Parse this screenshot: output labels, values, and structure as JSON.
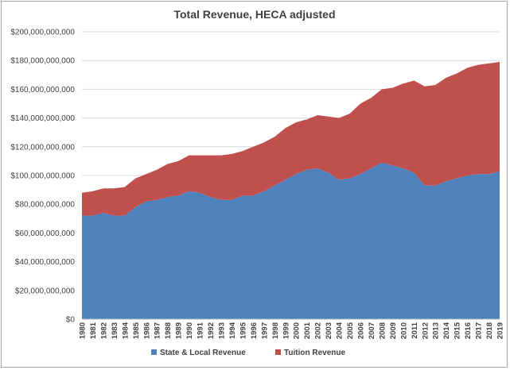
{
  "chart_data": {
    "type": "area",
    "stacked": true,
    "title": "Total Revenue, HECA adjusted",
    "xlabel": "",
    "ylabel": "",
    "ylim": [
      0,
      200000000000
    ],
    "yticks": [
      0,
      20000000000,
      40000000000,
      60000000000,
      80000000000,
      100000000000,
      120000000000,
      140000000000,
      160000000000,
      180000000000,
      200000000000
    ],
    "ytick_labels": [
      "$0",
      "$20,000,000,000",
      "$40,000,000,000",
      "$60,000,000,000",
      "$80,000,000,000",
      "$100,000,000,000",
      "$120,000,000,000",
      "$140,000,000,000",
      "$160,000,000,000",
      "$180,000,000,000",
      "$200,000,000,000"
    ],
    "grid": true,
    "legend_position": "bottom",
    "categories": [
      "1980",
      "1981",
      "1982",
      "1983",
      "1984",
      "1985",
      "1986",
      "1987",
      "1988",
      "1989",
      "1990",
      "1991",
      "1992",
      "1993",
      "1994",
      "1995",
      "1996",
      "1997",
      "1998",
      "1999",
      "2000",
      "2001",
      "2002",
      "2003",
      "2004",
      "2005",
      "2006",
      "2007",
      "2008",
      "2009",
      "2010",
      "2011",
      "2012",
      "2013",
      "2014",
      "2015",
      "2016",
      "2017",
      "2018",
      "2019"
    ],
    "series": [
      {
        "name": "State & Local Revenue",
        "color": "#4f81bd",
        "values": [
          72000000000,
          72000000000,
          74000000000,
          72000000000,
          72000000000,
          78000000000,
          82000000000,
          83000000000,
          85000000000,
          86000000000,
          89000000000,
          88000000000,
          85000000000,
          83000000000,
          83000000000,
          86000000000,
          86000000000,
          89000000000,
          93000000000,
          97000000000,
          101000000000,
          104000000000,
          105000000000,
          102000000000,
          97000000000,
          98000000000,
          101000000000,
          105000000000,
          109000000000,
          107000000000,
          105000000000,
          102000000000,
          93000000000,
          93000000000,
          96000000000,
          98000000000,
          100000000000,
          101000000000,
          101000000000,
          103000000000
        ]
      },
      {
        "name": "Tuition Revenue",
        "color": "#c0504d",
        "values": [
          16000000000,
          17000000000,
          17000000000,
          19000000000,
          20000000000,
          20000000000,
          19000000000,
          21000000000,
          23000000000,
          24000000000,
          25000000000,
          26000000000,
          29000000000,
          31000000000,
          32000000000,
          31000000000,
          34000000000,
          34000000000,
          34000000000,
          36000000000,
          36000000000,
          35000000000,
          37000000000,
          39000000000,
          43000000000,
          45000000000,
          49000000000,
          49000000000,
          51000000000,
          54000000000,
          59000000000,
          64000000000,
          69000000000,
          70000000000,
          72000000000,
          73000000000,
          75000000000,
          76000000000,
          77000000000,
          76000000000
        ]
      }
    ]
  }
}
